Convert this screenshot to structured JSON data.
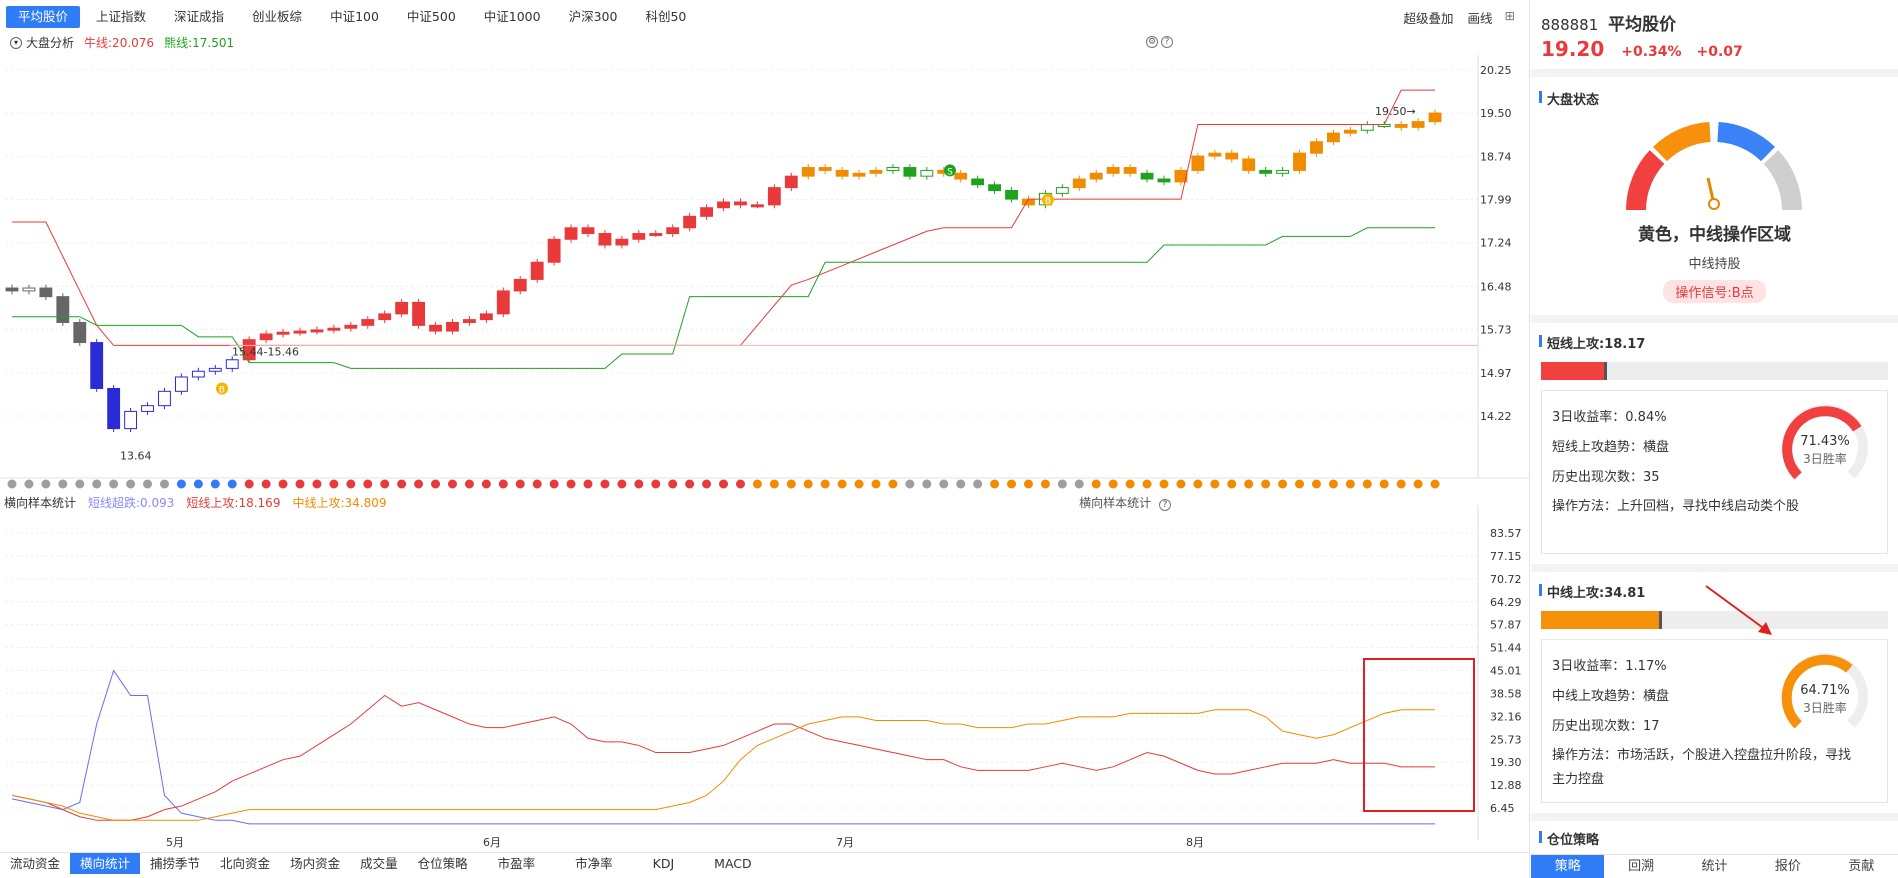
{
  "top_tabs": [
    "平均股价",
    "上证指数",
    "深证成指",
    "创业板综",
    "中证100",
    "中证500",
    "中证1000",
    "沪深300",
    "科创50"
  ],
  "top_tools": [
    "超级叠加",
    "画线"
  ],
  "upper": {
    "name": "大盘分析",
    "bull_label": "牛线:20.076",
    "bear_label": "熊线:17.501",
    "y_ticks": [
      "20.25",
      "19.50",
      "18.74",
      "17.99",
      "17.24",
      "16.48",
      "15.73",
      "14.97",
      "14.22"
    ],
    "annotations": {
      "low": "13.64",
      "range": "15.44-15.46",
      "high": "19.50→",
      "buy": "B",
      "sell": "S"
    }
  },
  "lower": {
    "name": "横向样本统计",
    "right_name": "横向样本统计",
    "short_fall": "短线超跌:0.093",
    "short_up": "短线上攻:18.169",
    "mid_up": "中线上攻:34.809",
    "y_ticks": [
      "83.57",
      "77.15",
      "70.72",
      "64.29",
      "57.87",
      "51.44",
      "45.01",
      "38.58",
      "32.16",
      "25.73",
      "19.30",
      "12.88",
      "6.45"
    ],
    "x_labels": [
      "5月",
      "6月",
      "7月",
      "8月"
    ]
  },
  "bottom_tabs": [
    "流动资金",
    "横向统计",
    "捕捞季节",
    "北向资金",
    "场内资金",
    "成交量",
    "仓位策略",
    "市盈率",
    "市净率",
    "KDJ",
    "MACD"
  ],
  "colors": {
    "up": "#e83a3a",
    "down": "#1fa31f",
    "orange": "#f08c00",
    "blue": "#2f7cf6",
    "grey": "#9e9e9e"
  },
  "panel": {
    "code": "888881",
    "name": "平均股价",
    "price": "19.20",
    "pct": "+0.34%",
    "chg": "+0.07",
    "market_state_title": "大盘状态",
    "state_text": "黄色，中线操作区域",
    "state_sub": "中线持股",
    "signal": "操作信号:B点",
    "short": {
      "title": "短线上攻:18.17",
      "fill": 0.19,
      "ret": "3日收益率：0.84%",
      "trend": "短线上攻趋势：横盘",
      "count": "历史出现次数：35",
      "method": "操作方法：上升回档，寻找中线启动类个股",
      "win": "71.43%",
      "win_label": "3日胜率",
      "win_value": 0.7143
    },
    "mid": {
      "title": "中线上攻:34.81",
      "fill": 0.35,
      "ret": "3日收益率：1.17%",
      "trend": "中线上攻趋势：横盘",
      "count": "历史出现次数：17",
      "method": "操作方法：市场活跃，个股进入控盘拉升阶段，寻找主力控盘",
      "win": "64.71%",
      "win_label": "3日胜率",
      "win_value": 0.6471
    },
    "position_title": "仓位策略",
    "tabs": [
      "策略",
      "回溯",
      "统计",
      "报价",
      "贡献"
    ]
  }
}
